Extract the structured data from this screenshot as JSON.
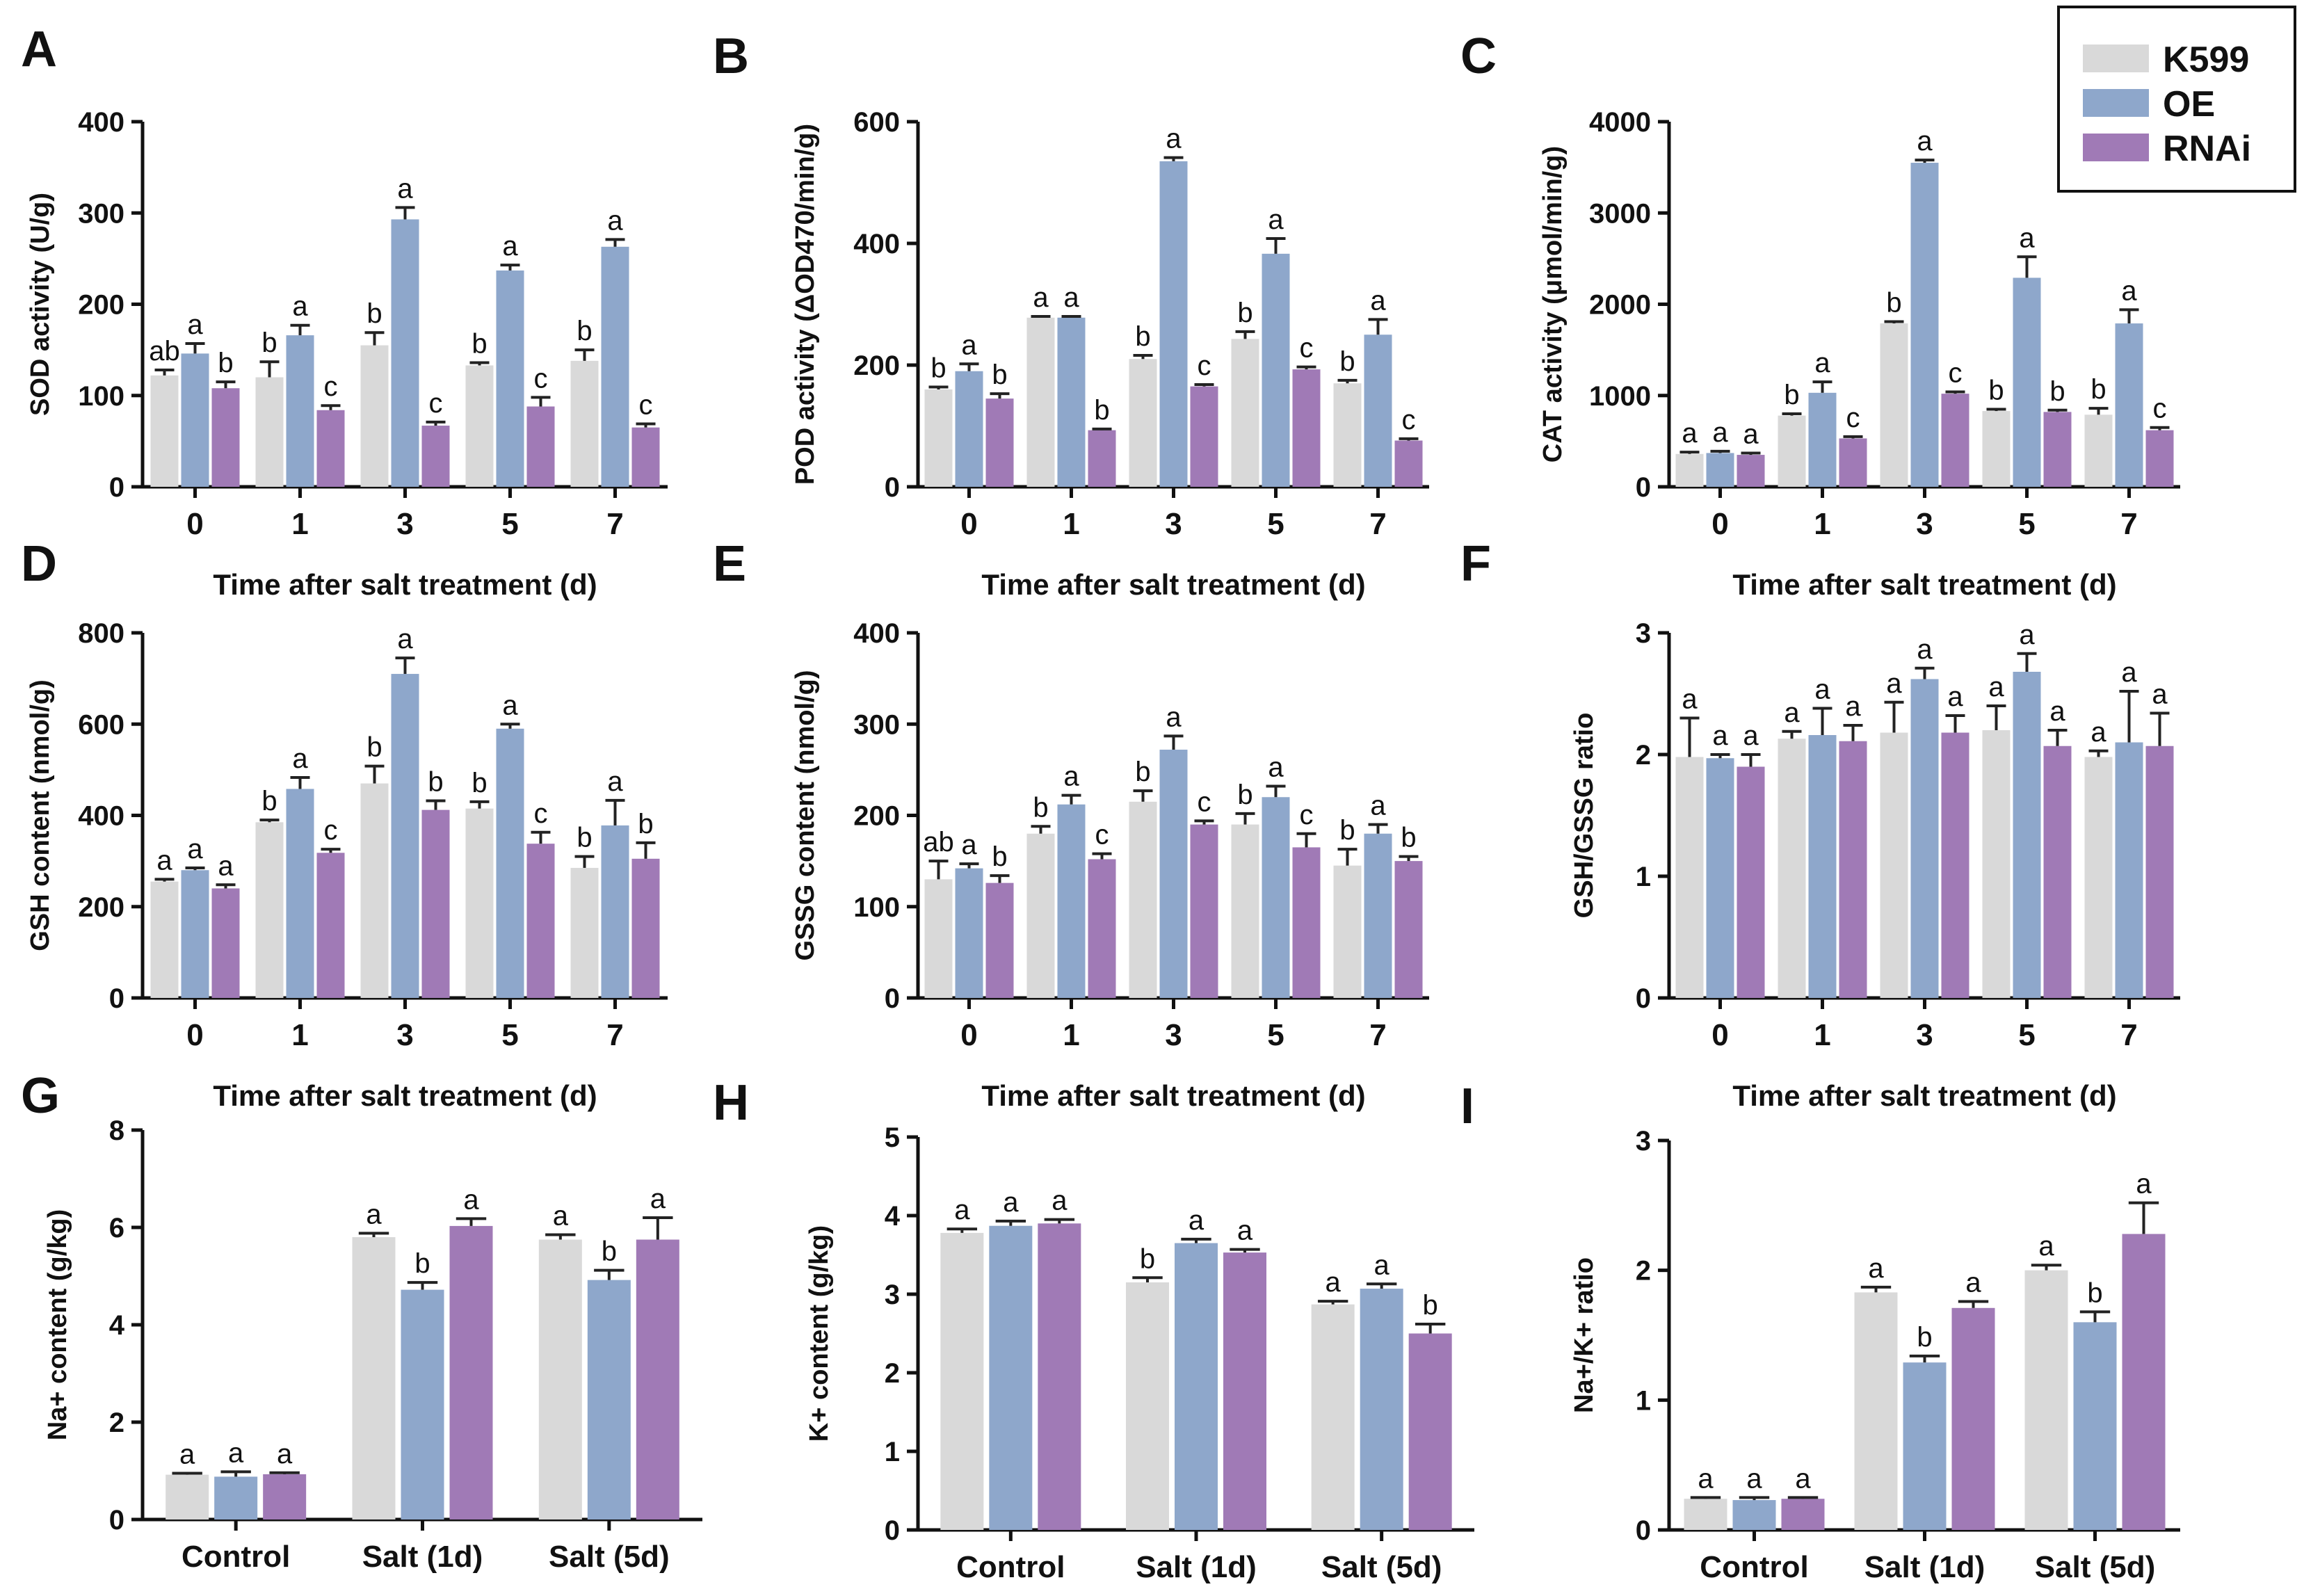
{
  "colors": {
    "K599": "#d9d9d9",
    "OE": "#8ea7cb",
    "RNAi": "#a07ab6",
    "axis": "#111111"
  },
  "legend": {
    "items": [
      "K599",
      "OE",
      "RNAi"
    ],
    "placement": "top-right"
  },
  "chart_data": [
    {
      "panel": "A",
      "type": "bar",
      "title": "",
      "ylabel": "SOD activity (U/g)",
      "xlabel": "Time after salt treatment (d)",
      "categories": [
        "0",
        "1",
        "3",
        "5",
        "7"
      ],
      "ylim": [
        0,
        400
      ],
      "yticks": [
        0,
        100,
        200,
        300,
        400
      ],
      "series": [
        {
          "name": "K599",
          "values": [
            122,
            120,
            155,
            133,
            138
          ],
          "errors": [
            6,
            17,
            14,
            3,
            12
          ]
        },
        {
          "name": "OE",
          "values": [
            146,
            166,
            293,
            237,
            263
          ],
          "errors": [
            11,
            11,
            13,
            6,
            8
          ]
        },
        {
          "name": "RNAi",
          "values": [
            108,
            84,
            67,
            88,
            65
          ],
          "errors": [
            7,
            5,
            4,
            10,
            4
          ]
        }
      ],
      "letters": [
        [
          "ab",
          "a",
          "b"
        ],
        [
          "b",
          "a",
          "c"
        ],
        [
          "b",
          "a",
          "c"
        ],
        [
          "b",
          "a",
          "c"
        ],
        [
          "b",
          "a",
          "c"
        ]
      ]
    },
    {
      "panel": "B",
      "type": "bar",
      "title": "",
      "ylabel": "POD activity (ΔOD470/min/g)",
      "xlabel": "Time after salt treatment (d)",
      "categories": [
        "0",
        "1",
        "3",
        "5",
        "7"
      ],
      "ylim": [
        0,
        600
      ],
      "yticks": [
        0,
        200,
        400,
        600
      ],
      "series": [
        {
          "name": "K599",
          "values": [
            160,
            278,
            210,
            243,
            170
          ],
          "errors": [
            4,
            2,
            6,
            12,
            5
          ]
        },
        {
          "name": "OE",
          "values": [
            190,
            278,
            535,
            383,
            250
          ],
          "errors": [
            12,
            2,
            6,
            25,
            25
          ]
        },
        {
          "name": "RNAi",
          "values": [
            145,
            93,
            165,
            193,
            76
          ],
          "errors": [
            8,
            2,
            3,
            4,
            3
          ]
        }
      ],
      "letters": [
        [
          "b",
          "a",
          "b"
        ],
        [
          "a",
          "a",
          "b"
        ],
        [
          "b",
          "a",
          "c"
        ],
        [
          "b",
          "a",
          "c"
        ],
        [
          "b",
          "a",
          "c"
        ]
      ]
    },
    {
      "panel": "C",
      "type": "bar",
      "title": "",
      "ylabel": "CAT activity (μmol/min/g)",
      "xlabel": "Time after salt treatment (d)",
      "categories": [
        "0",
        "1",
        "3",
        "5",
        "7"
      ],
      "ylim": [
        0,
        4000
      ],
      "yticks": [
        0,
        1000,
        2000,
        3000,
        4000
      ],
      "series": [
        {
          "name": "K599",
          "values": [
            360,
            780,
            1790,
            830,
            790
          ],
          "errors": [
            20,
            20,
            20,
            20,
            70
          ]
        },
        {
          "name": "OE",
          "values": [
            370,
            1030,
            3550,
            2290,
            1790
          ],
          "errors": [
            20,
            120,
            30,
            230,
            150
          ]
        },
        {
          "name": "RNAi",
          "values": [
            350,
            530,
            1020,
            820,
            620
          ],
          "errors": [
            20,
            20,
            20,
            20,
            30
          ]
        }
      ],
      "letters": [
        [
          "a",
          "a",
          "a"
        ],
        [
          "b",
          "a",
          "c"
        ],
        [
          "b",
          "a",
          "c"
        ],
        [
          "b",
          "a",
          "b"
        ],
        [
          "b",
          "a",
          "c"
        ]
      ]
    },
    {
      "panel": "D",
      "type": "bar",
      "title": "",
      "ylabel": "GSH content (nmol/g)",
      "xlabel": "Time after salt treatment (d)",
      "categories": [
        "0",
        "1",
        "3",
        "5",
        "7"
      ],
      "ylim": [
        0,
        800
      ],
      "yticks": [
        0,
        200,
        400,
        600,
        800
      ],
      "series": [
        {
          "name": "K599",
          "values": [
            255,
            385,
            470,
            415,
            285
          ],
          "errors": [
            5,
            5,
            38,
            15,
            25
          ]
        },
        {
          "name": "OE",
          "values": [
            280,
            458,
            710,
            590,
            378
          ],
          "errors": [
            5,
            25,
            35,
            10,
            55
          ]
        },
        {
          "name": "RNAi",
          "values": [
            240,
            318,
            412,
            338,
            305
          ],
          "errors": [
            8,
            8,
            20,
            25,
            35
          ]
        }
      ],
      "letters": [
        [
          "a",
          "a",
          "a"
        ],
        [
          "b",
          "a",
          "c"
        ],
        [
          "b",
          "a",
          "b"
        ],
        [
          "b",
          "a",
          "c"
        ],
        [
          "b",
          "a",
          "b"
        ]
      ]
    },
    {
      "panel": "E",
      "type": "bar",
      "title": "",
      "ylabel": "GSSG content (nmol/g)",
      "xlabel": "Time after salt treatment (d)",
      "categories": [
        "0",
        "1",
        "3",
        "5",
        "7"
      ],
      "ylim": [
        0,
        400
      ],
      "yticks": [
        0,
        100,
        200,
        300,
        400
      ],
      "series": [
        {
          "name": "K599",
          "values": [
            130,
            180,
            215,
            190,
            145
          ],
          "errors": [
            20,
            8,
            12,
            12,
            18
          ]
        },
        {
          "name": "OE",
          "values": [
            142,
            212,
            272,
            220,
            180
          ],
          "errors": [
            5,
            10,
            15,
            12,
            10
          ]
        },
        {
          "name": "RNAi",
          "values": [
            126,
            152,
            190,
            165,
            150
          ],
          "errors": [
            8,
            6,
            4,
            15,
            5
          ]
        }
      ],
      "letters": [
        [
          "ab",
          "a",
          "b"
        ],
        [
          "b",
          "a",
          "c"
        ],
        [
          "b",
          "a",
          "c"
        ],
        [
          "b",
          "a",
          "c"
        ],
        [
          "b",
          "a",
          "b"
        ]
      ]
    },
    {
      "panel": "F",
      "type": "bar",
      "title": "",
      "ylabel": "GSH/GSSG ratio",
      "xlabel": "Time after salt treatment (d)",
      "categories": [
        "0",
        "1",
        "3",
        "5",
        "7"
      ],
      "ylim": [
        0,
        3
      ],
      "yticks": [
        0,
        1,
        2,
        3
      ],
      "series": [
        {
          "name": "K599",
          "values": [
            1.98,
            2.13,
            2.18,
            2.2,
            1.98
          ],
          "errors": [
            0.32,
            0.06,
            0.25,
            0.2,
            0.05
          ]
        },
        {
          "name": "OE",
          "values": [
            1.97,
            2.16,
            2.62,
            2.68,
            2.1
          ],
          "errors": [
            0.03,
            0.22,
            0.09,
            0.15,
            0.42
          ]
        },
        {
          "name": "RNAi",
          "values": [
            1.9,
            2.11,
            2.18,
            2.07,
            2.07
          ],
          "errors": [
            0.1,
            0.13,
            0.14,
            0.13,
            0.27
          ]
        }
      ],
      "letters": [
        [
          "a",
          "a",
          "a"
        ],
        [
          "a",
          "a",
          "a"
        ],
        [
          "a",
          "a",
          "a"
        ],
        [
          "a",
          "a",
          "a"
        ],
        [
          "a",
          "a",
          "a"
        ]
      ]
    },
    {
      "panel": "G",
      "type": "bar",
      "title": "",
      "ylabel": "Na+ content (g/kg)",
      "xlabel": "",
      "categories": [
        "Control",
        "Salt (1d)",
        "Salt (5d)"
      ],
      "ylim": [
        0,
        8
      ],
      "yticks": [
        0,
        2,
        4,
        6,
        8
      ],
      "series": [
        {
          "name": "K599",
          "values": [
            0.92,
            5.8,
            5.75
          ],
          "errors": [
            0.03,
            0.08,
            0.1
          ]
        },
        {
          "name": "OE",
          "values": [
            0.88,
            4.72,
            4.92
          ],
          "errors": [
            0.1,
            0.15,
            0.2
          ]
        },
        {
          "name": "RNAi",
          "values": [
            0.93,
            6.03,
            5.75
          ],
          "errors": [
            0.03,
            0.15,
            0.45
          ]
        }
      ],
      "letters": [
        [
          "a",
          "a",
          "a"
        ],
        [
          "a",
          "b",
          "a"
        ],
        [
          "a",
          "b",
          "a"
        ]
      ]
    },
    {
      "panel": "H",
      "type": "bar",
      "title": "",
      "ylabel": "K+ content (g/kg)",
      "xlabel": "",
      "categories": [
        "Control",
        "Salt (1d)",
        "Salt (5d)"
      ],
      "ylim": [
        0,
        5
      ],
      "yticks": [
        0,
        1,
        2,
        3,
        4,
        5
      ],
      "series": [
        {
          "name": "K599",
          "values": [
            3.78,
            3.15,
            2.87
          ],
          "errors": [
            0.05,
            0.06,
            0.04
          ]
        },
        {
          "name": "OE",
          "values": [
            3.87,
            3.65,
            3.07
          ],
          "errors": [
            0.06,
            0.05,
            0.06
          ]
        },
        {
          "name": "RNAi",
          "values": [
            3.9,
            3.53,
            2.5
          ],
          "errors": [
            0.05,
            0.04,
            0.12
          ]
        }
      ],
      "letters": [
        [
          "a",
          "a",
          "a"
        ],
        [
          "b",
          "a",
          "a"
        ],
        [
          "a",
          "a",
          "b"
        ]
      ]
    },
    {
      "panel": "I",
      "type": "bar",
      "title": "",
      "ylabel": "Na+/K+ ratio",
      "xlabel": "",
      "categories": [
        "Control",
        "Salt (1d)",
        "Salt (5d)"
      ],
      "ylim": [
        0,
        3
      ],
      "yticks": [
        0,
        1,
        2,
        3
      ],
      "series": [
        {
          "name": "K599",
          "values": [
            0.24,
            1.83,
            2.0
          ],
          "errors": [
            0.01,
            0.04,
            0.04
          ]
        },
        {
          "name": "OE",
          "values": [
            0.23,
            1.29,
            1.6
          ],
          "errors": [
            0.02,
            0.05,
            0.08
          ]
        },
        {
          "name": "RNAi",
          "values": [
            0.24,
            1.71,
            2.28
          ],
          "errors": [
            0.01,
            0.05,
            0.24
          ]
        }
      ],
      "letters": [
        [
          "a",
          "a",
          "a"
        ],
        [
          "a",
          "b",
          "a"
        ],
        [
          "a",
          "b",
          "a"
        ]
      ]
    }
  ]
}
